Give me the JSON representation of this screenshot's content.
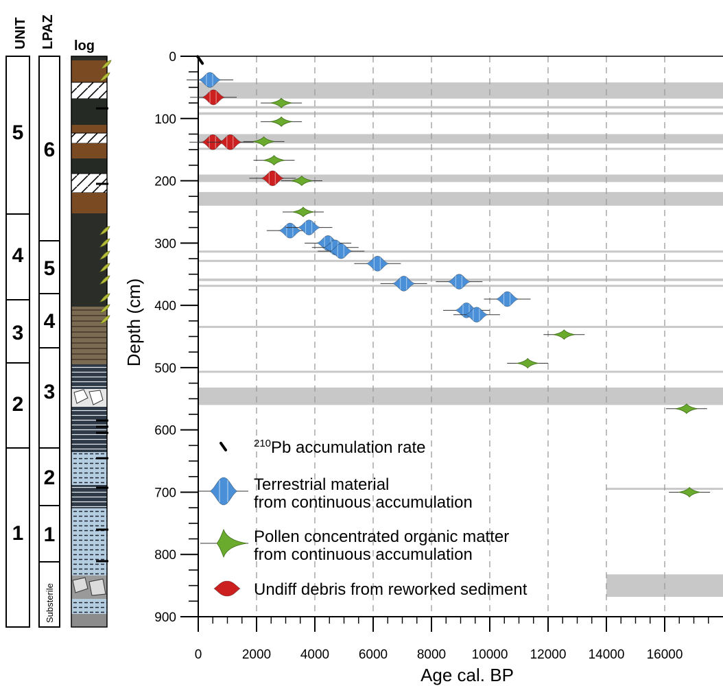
{
  "strat": {
    "unit_header": "UNIT",
    "lpaz_header": "LPAZ",
    "log_header": "log",
    "units": [
      "5",
      "4",
      "3",
      "2",
      "1"
    ],
    "lpaz": [
      "6",
      "5",
      "4",
      "3",
      "2",
      "1",
      "Substerile"
    ]
  },
  "chart_data": {
    "type": "scatter",
    "xlabel": "Age cal. BP",
    "ylabel": "Depth (cm)",
    "xlim": [
      0,
      18000
    ],
    "ylim": [
      900,
      0
    ],
    "x_ticks": [
      0,
      2000,
      4000,
      6000,
      8000,
      10000,
      12000,
      14000,
      16000
    ],
    "y_ticks": [
      0,
      100,
      200,
      300,
      400,
      500,
      600,
      700,
      800,
      900
    ],
    "grid": "vertical dashed",
    "legend_position": "bottom-left",
    "legend": [
      {
        "label": "210Pb accumulation rate",
        "key": "pb"
      },
      {
        "label": "Terrestrial material\nfrom continuous accumulation",
        "key": "terr"
      },
      {
        "label": "Pollen concentrated organic matter\nfrom continuous accumulation",
        "key": "pollen"
      },
      {
        "label": "Undiff debris from reworked sediment",
        "key": "debris"
      }
    ],
    "colors": {
      "terr": "#4a90d9",
      "pollen": "#6aab2e",
      "debris": "#cc2020",
      "pb": "#000000",
      "band": "#c8c8c8"
    },
    "series": [
      {
        "key": "pb",
        "points": [
          {
            "x": 50,
            "y": 6
          }
        ]
      },
      {
        "key": "terr",
        "points": [
          {
            "x": 400,
            "y": 38
          },
          {
            "x": 3150,
            "y": 280
          },
          {
            "x": 3800,
            "y": 275
          },
          {
            "x": 4450,
            "y": 300
          },
          {
            "x": 4700,
            "y": 307
          },
          {
            "x": 4900,
            "y": 313
          },
          {
            "x": 6150,
            "y": 333
          },
          {
            "x": 7050,
            "y": 365
          },
          {
            "x": 8950,
            "y": 362
          },
          {
            "x": 10600,
            "y": 390
          },
          {
            "x": 9200,
            "y": 408
          },
          {
            "x": 9550,
            "y": 415
          }
        ]
      },
      {
        "key": "pollen",
        "points": [
          {
            "x": 2850,
            "y": 75
          },
          {
            "x": 2850,
            "y": 105
          },
          {
            "x": 2250,
            "y": 137
          },
          {
            "x": 2600,
            "y": 167
          },
          {
            "x": 3550,
            "y": 200
          },
          {
            "x": 3600,
            "y": 250
          },
          {
            "x": 12550,
            "y": 447
          },
          {
            "x": 11300,
            "y": 493
          },
          {
            "x": 16750,
            "y": 566
          },
          {
            "x": 16850,
            "y": 700
          }
        ]
      },
      {
        "key": "debris",
        "points": [
          {
            "x": 520,
            "y": 66
          },
          {
            "x": 500,
            "y": 138
          },
          {
            "x": 1100,
            "y": 138
          },
          {
            "x": 2550,
            "y": 196
          }
        ]
      }
    ],
    "bands": [
      {
        "y0": 42,
        "y1": 68
      },
      {
        "y0": 80,
        "y1": 84
      },
      {
        "y0": 90,
        "y1": 94
      },
      {
        "y0": 125,
        "y1": 140
      },
      {
        "y0": 147,
        "y1": 150
      },
      {
        "y0": 190,
        "y1": 202
      },
      {
        "y0": 218,
        "y1": 240
      },
      {
        "y0": 312,
        "y1": 315
      },
      {
        "y0": 327,
        "y1": 330
      },
      {
        "y0": 357,
        "y1": 361
      },
      {
        "y0": 367,
        "y1": 370
      },
      {
        "y0": 433,
        "y1": 435
      },
      {
        "y0": 505,
        "y1": 508
      },
      {
        "y0": 532,
        "y1": 560
      }
    ],
    "partial_bands": [
      {
        "y0": 693,
        "y1": 696,
        "x0": 14000
      },
      {
        "y0": 832,
        "y1": 868,
        "x0": 14000
      }
    ]
  }
}
